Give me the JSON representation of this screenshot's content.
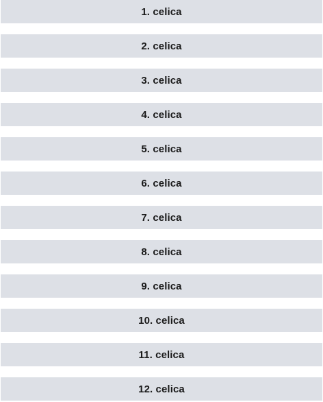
{
  "cells": [
    {
      "label": "1. celica"
    },
    {
      "label": "2. celica"
    },
    {
      "label": "3. celica"
    },
    {
      "label": "4. celica"
    },
    {
      "label": "5. celica"
    },
    {
      "label": "6. celica"
    },
    {
      "label": "7. celica"
    },
    {
      "label": "8. celica"
    },
    {
      "label": "9. celica"
    },
    {
      "label": "10. celica"
    },
    {
      "label": "11. celica"
    },
    {
      "label": "12. celica"
    }
  ],
  "colors": {
    "cell_background": "#dde0e6",
    "text": "#1a1a1a",
    "page_background": "#ffffff"
  }
}
